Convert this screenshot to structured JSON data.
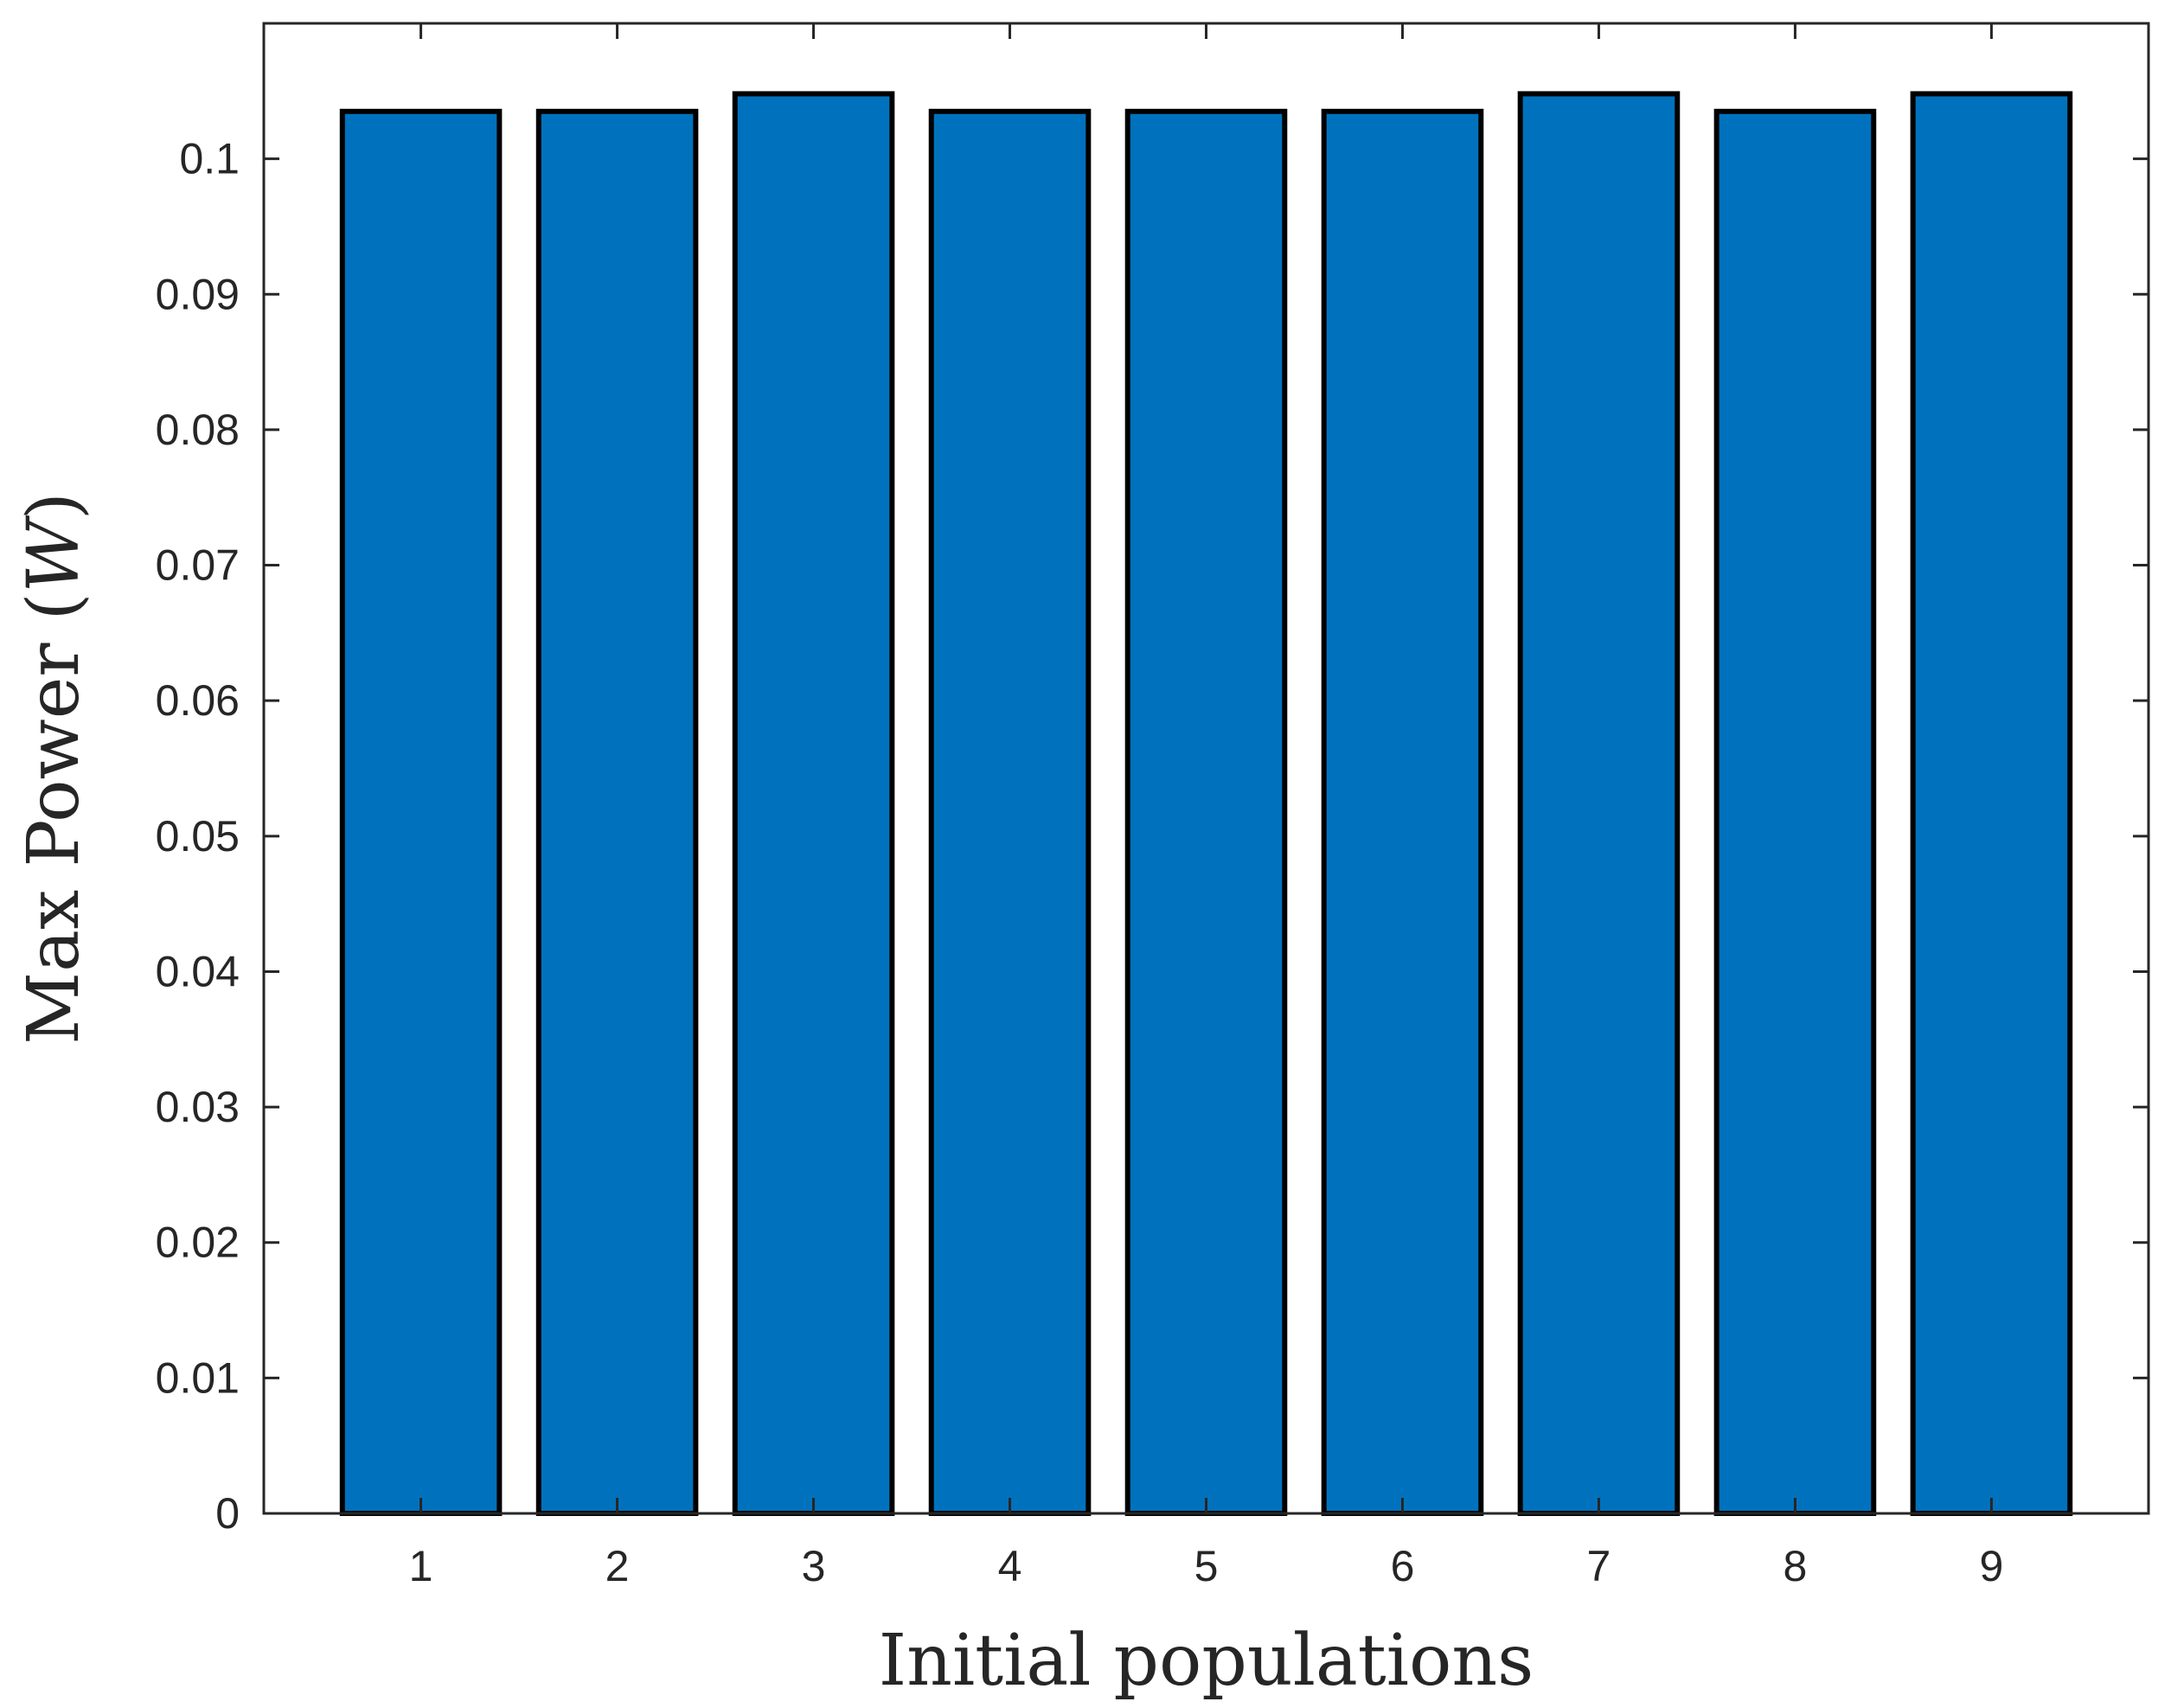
{
  "chart_data": {
    "type": "bar",
    "categories": [
      "1",
      "2",
      "3",
      "4",
      "5",
      "6",
      "7",
      "8",
      "9"
    ],
    "values": [
      0.1035,
      0.1035,
      0.1048,
      0.1035,
      0.1035,
      0.1035,
      0.1048,
      0.1035,
      0.1048
    ],
    "title": "",
    "xlabel": "Initial populations",
    "ylabel": {
      "text": "Max Power (",
      "unit": "W",
      "close": ")"
    },
    "ylim": [
      0,
      0.11
    ],
    "xlim": [
      0.2,
      9.8
    ],
    "yticks": [
      0,
      0.01,
      0.02,
      0.03,
      0.04,
      0.05,
      0.06,
      0.07,
      0.08,
      0.09,
      0.1
    ],
    "ytick_labels": [
      "0",
      "0.01",
      "0.02",
      "0.03",
      "0.04",
      "0.05",
      "0.06",
      "0.07",
      "0.08",
      "0.09",
      "0.1"
    ],
    "grid": false,
    "bar_color": "#0072BD",
    "edge_color": "#000000",
    "axis_color": "#262626"
  }
}
